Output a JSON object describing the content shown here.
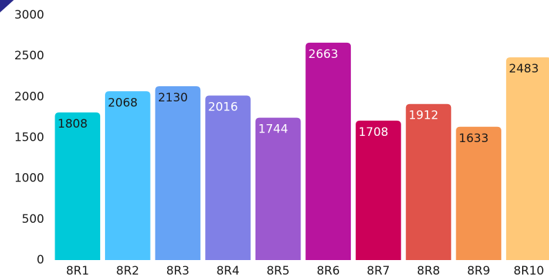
{
  "chart_data": {
    "type": "bar",
    "categories": [
      "8R1",
      "8R2",
      "8R3",
      "8R4",
      "8R5",
      "8R6",
      "8R7",
      "8R8",
      "8R9",
      "8R10"
    ],
    "values": [
      1808,
      2068,
      2130,
      2016,
      1744,
      2663,
      1708,
      1912,
      1633,
      2483
    ],
    "colors": [
      "#00c9d9",
      "#4dc4ff",
      "#66a3f5",
      "#8080e6",
      "#9c59cf",
      "#b8149e",
      "#cc0059",
      "#e0534a",
      "#f5944f",
      "#ffc878"
    ],
    "label_colors": [
      "#1a1a1a",
      "#1a1a1a",
      "#1a1a1a",
      "#ffffff",
      "#ffffff",
      "#ffffff",
      "#ffffff",
      "#ffffff",
      "#1a1a1a",
      "#1a1a1a"
    ],
    "ylim": [
      0,
      3000
    ],
    "yticks": [
      0,
      500,
      1000,
      1500,
      2000,
      2500,
      3000
    ],
    "grid": false
  }
}
